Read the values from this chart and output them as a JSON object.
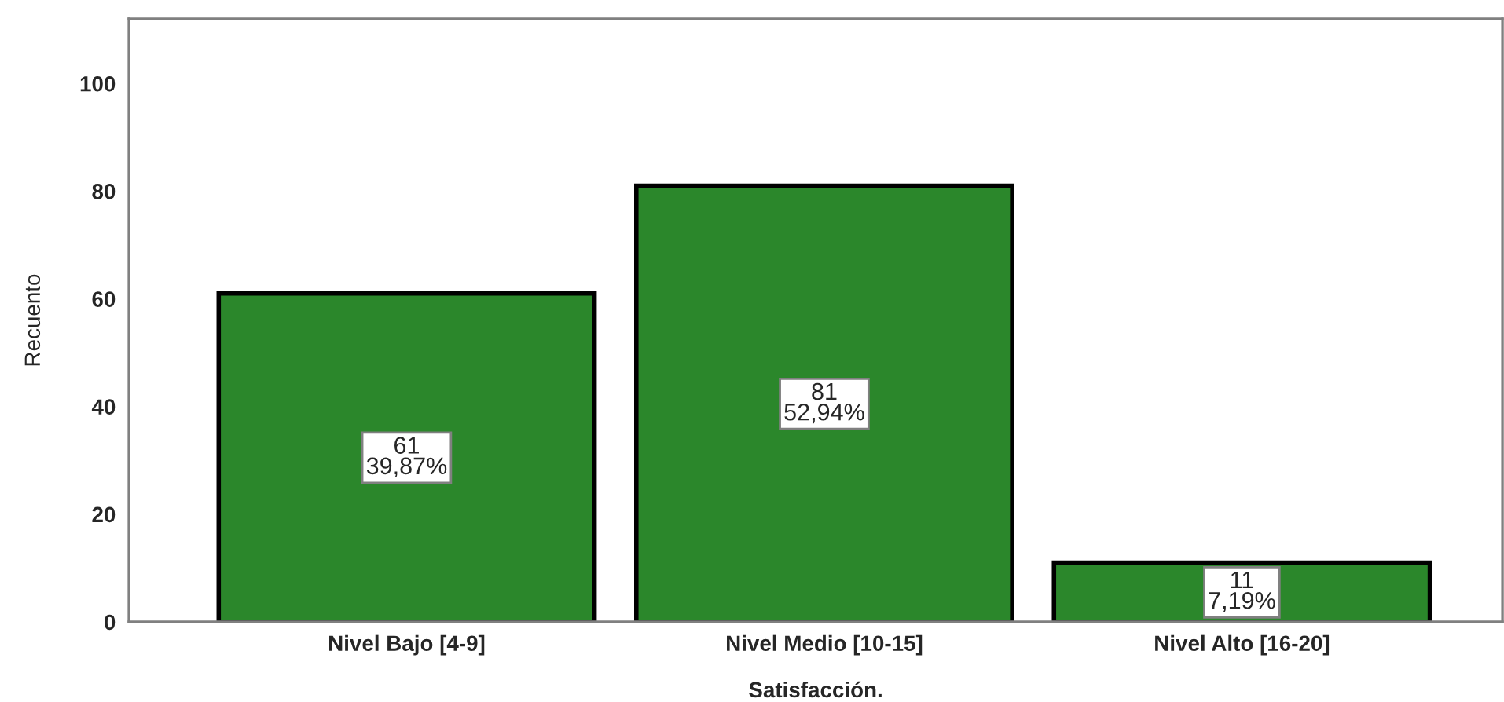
{
  "chart_data": {
    "type": "bar",
    "xlabel": "Satisfacción.",
    "ylabel": "Recuento",
    "categories": [
      "Nivel Bajo [4-9]",
      "Nivel Medio [10-15]",
      "Nivel Alto [16-20]"
    ],
    "values": [
      61,
      81,
      11
    ],
    "color": "#2b872b",
    "value_labels": [
      "61\n39,87%",
      "81\n52,94%",
      "11\n7,19%"
    ],
    "ylim": [
      0,
      112
    ],
    "yticks": [
      0,
      20,
      40,
      60,
      80,
      100
    ],
    "grid": false
  }
}
